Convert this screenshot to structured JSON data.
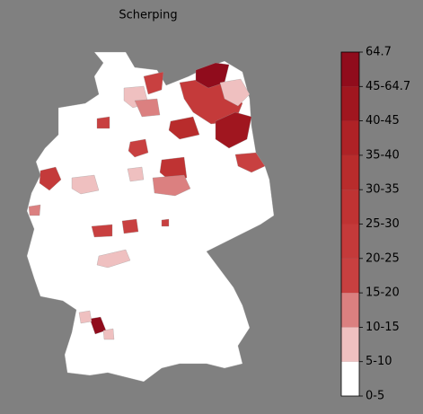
{
  "title": "Scherping",
  "legend": {
    "labels": [
      "0-5",
      "5-10",
      "10-15",
      "15-20",
      "20-25",
      "25-30",
      "30-35",
      "35-40",
      "40-45",
      "45-64.7",
      "64.7"
    ],
    "colors": [
      "#ffffff",
      "#efc0c0",
      "#db8080",
      "#c84040",
      "#c43a3a",
      "#bf3333",
      "#b82c2c",
      "#ae2226",
      "#a0161f",
      "#900c1c"
    ]
  }
}
